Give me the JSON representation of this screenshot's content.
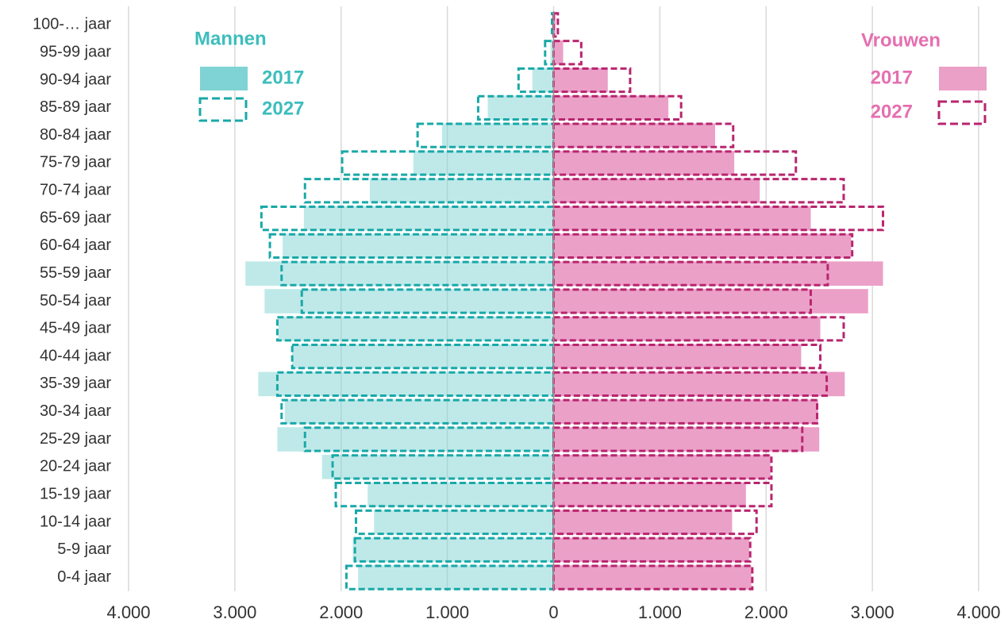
{
  "chart_data": {
    "type": "pyramid",
    "categories": [
      "100-… jaar",
      "95-99 jaar",
      "90-94 jaar",
      "85-89 jaar",
      "80-84 jaar",
      "75-79 jaar",
      "70-74 jaar",
      "65-69 jaar",
      "60-64 jaar",
      "55-59 jaar",
      "50-54 jaar",
      "45-49 jaar",
      "40-44 jaar",
      "35-39 jaar",
      "30-34 jaar",
      "25-29 jaar",
      "20-24 jaar",
      "15-19 jaar",
      "10-14 jaar",
      "5-9 jaar",
      "0-4 jaar"
    ],
    "groups": [
      {
        "title": "Mannen",
        "color": "#3dbdbd"
      },
      {
        "title": "Vrouwen",
        "color": "#e56fb0"
      }
    ],
    "series": [
      {
        "name": "2017",
        "group": 0,
        "style": "solid",
        "color": "#7fd3d4",
        "values": [
          -10,
          -30,
          -200,
          -620,
          -1050,
          -1320,
          -1730,
          -2350,
          -2550,
          -2900,
          -2720,
          -2590,
          -2460,
          -2780,
          -2530,
          -2600,
          -2180,
          -1750,
          -1690,
          -1890,
          -1840
        ]
      },
      {
        "name": "2027",
        "group": 0,
        "style": "dashed",
        "color": "#1aa8a8",
        "values": [
          -15,
          -80,
          -330,
          -710,
          -1280,
          -1990,
          -2340,
          -2750,
          -2670,
          -2560,
          -2370,
          -2600,
          -2460,
          -2600,
          -2560,
          -2340,
          -2080,
          -2050,
          -1860,
          -1870,
          -1950
        ]
      },
      {
        "name": "2017",
        "group": 1,
        "style": "solid",
        "color": "#eba0c8",
        "values": [
          20,
          90,
          510,
          1080,
          1520,
          1700,
          1940,
          2420,
          2800,
          3100,
          2960,
          2510,
          2330,
          2740,
          2490,
          2500,
          2040,
          1810,
          1680,
          1840,
          1860
        ]
      },
      {
        "name": "2027",
        "group": 1,
        "style": "dashed",
        "color": "#b8256e",
        "values": [
          40,
          260,
          720,
          1200,
          1690,
          2280,
          2730,
          3100,
          2810,
          2580,
          2420,
          2730,
          2510,
          2570,
          2480,
          2340,
          2050,
          2050,
          1910,
          1850,
          1870
        ]
      }
    ],
    "xlim": [
      -4000,
      4000
    ],
    "xticks": [
      {
        "value": -4000,
        "label": "4.000"
      },
      {
        "value": -3000,
        "label": "3.000"
      },
      {
        "value": -2000,
        "label": "2.000"
      },
      {
        "value": -1000,
        "label": "1.000"
      },
      0,
      {
        "value": 1000,
        "label": "1.000"
      },
      {
        "value": 2000,
        "label": "2.000"
      },
      {
        "value": 3000,
        "label": "3.000"
      },
      {
        "value": 4000,
        "label": "4.000"
      }
    ],
    "grid": true
  }
}
